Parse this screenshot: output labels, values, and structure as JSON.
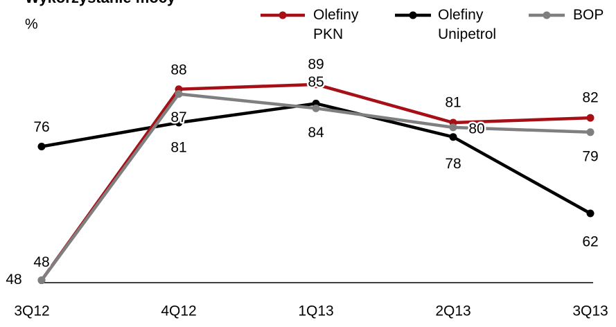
{
  "chart_data": {
    "type": "line",
    "title": "Wykorzystanie mocy",
    "y_unit": "%",
    "categories": [
      "3Q12",
      "4Q12",
      "1Q13",
      "2Q13",
      "3Q13"
    ],
    "series": [
      {
        "name": "Olefiny PKN",
        "color": "#a50f15",
        "values": [
          48,
          88,
          89,
          81,
          82
        ]
      },
      {
        "name": "Olefiny Unipetrol",
        "color": "#000000",
        "values": [
          76,
          81,
          85,
          78,
          62
        ]
      },
      {
        "name": "BOP",
        "color": "#7f7f7f",
        "values": [
          48,
          87,
          84,
          80,
          79
        ]
      }
    ],
    "ylim": [
      47.5,
      100
    ],
    "legend": "top-right"
  }
}
